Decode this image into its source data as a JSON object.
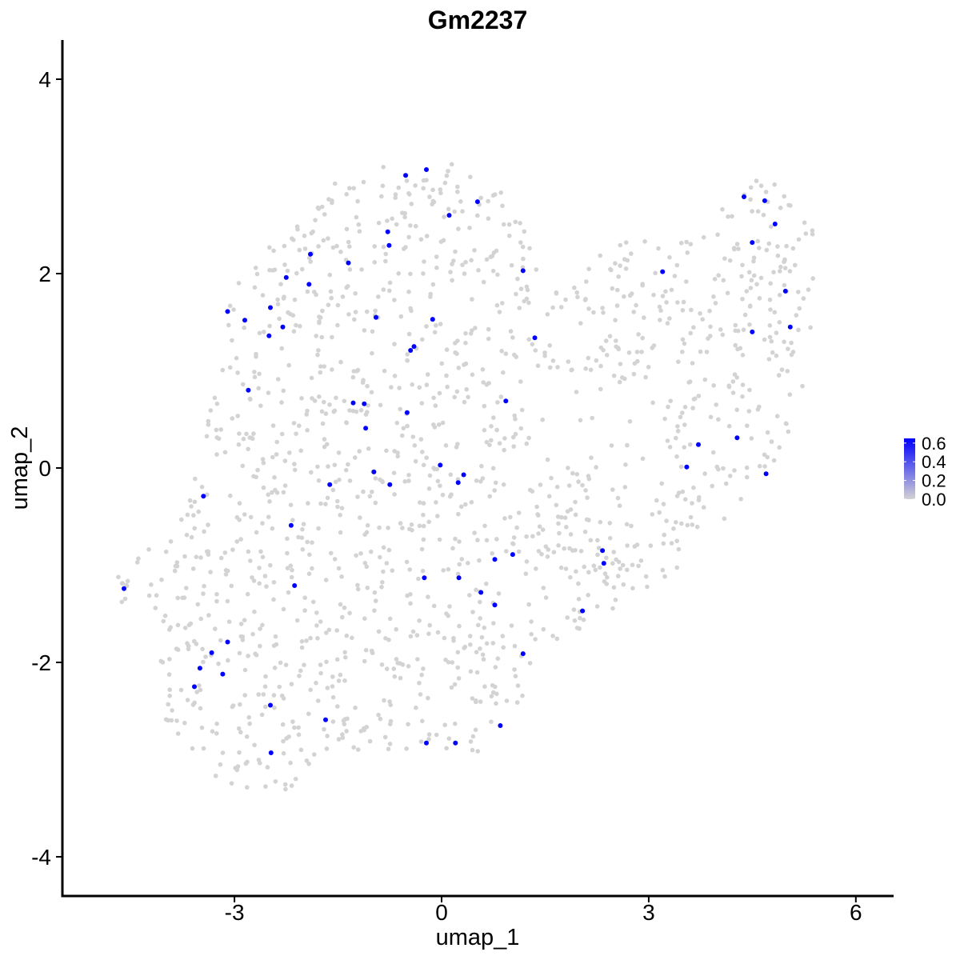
{
  "chart_data": {
    "type": "scatter",
    "title": "Gm2237",
    "xlabel": "umap_1",
    "ylabel": "umap_2",
    "xlim": [
      -5.5,
      6.5
    ],
    "ylim": [
      -4.3,
      4.4
    ],
    "x_ticks": [
      -3,
      0,
      3,
      6
    ],
    "x_tick_labels": [
      "-3",
      "0",
      "3",
      "6"
    ],
    "y_ticks": [
      -4,
      -2,
      0,
      2,
      4
    ],
    "y_tick_labels": [
      "-4",
      "-2",
      "0",
      "2",
      "4"
    ],
    "grid": false,
    "legend": {
      "placement": "right",
      "type": "colorbar",
      "ticks": [
        0.0,
        0.2,
        0.4,
        0.6
      ],
      "tick_labels": [
        "0.0",
        "0.2",
        "0.4",
        "0.6"
      ],
      "range": [
        0,
        0.65
      ],
      "low_color": "#d3d3d3",
      "high_color": "#0000ff"
    },
    "colors": {
      "not_expressed": "#d3d3d3",
      "expressed": "#0000ff"
    },
    "expressed_points": [
      {
        "x": -4.6,
        "y": -1.24
      },
      {
        "x": -3.58,
        "y": -2.25
      },
      {
        "x": -3.5,
        "y": -2.06
      },
      {
        "x": -3.33,
        "y": -1.9
      },
      {
        "x": -3.45,
        "y": -0.29
      },
      {
        "x": -3.17,
        "y": -2.12
      },
      {
        "x": -3.1,
        "y": -1.79
      },
      {
        "x": -3.1,
        "y": 1.61
      },
      {
        "x": -2.85,
        "y": 1.52
      },
      {
        "x": -2.8,
        "y": 0.8
      },
      {
        "x": -2.5,
        "y": 1.36
      },
      {
        "x": -2.48,
        "y": 1.65
      },
      {
        "x": -2.3,
        "y": 1.45
      },
      {
        "x": -2.25,
        "y": 1.96
      },
      {
        "x": -2.48,
        "y": -2.44
      },
      {
        "x": -2.47,
        "y": -2.93
      },
      {
        "x": -2.18,
        "y": -0.59
      },
      {
        "x": -2.13,
        "y": -1.21
      },
      {
        "x": -1.92,
        "y": 1.89
      },
      {
        "x": -1.9,
        "y": 2.2
      },
      {
        "x": -1.68,
        "y": -2.59
      },
      {
        "x": -1.62,
        "y": -0.17
      },
      {
        "x": -1.35,
        "y": 2.11
      },
      {
        "x": -1.28,
        "y": 0.67
      },
      {
        "x": -1.12,
        "y": 0.66
      },
      {
        "x": -1.1,
        "y": 0.41
      },
      {
        "x": -0.98,
        "y": -0.04
      },
      {
        "x": -0.95,
        "y": 1.55
      },
      {
        "x": -0.78,
        "y": 2.43
      },
      {
        "x": -0.76,
        "y": 2.29
      },
      {
        "x": -0.75,
        "y": -0.17
      },
      {
        "x": -0.52,
        "y": 3.01
      },
      {
        "x": -0.5,
        "y": 0.57
      },
      {
        "x": -0.45,
        "y": 1.21
      },
      {
        "x": -0.4,
        "y": 1.25
      },
      {
        "x": -0.22,
        "y": 3.07
      },
      {
        "x": -0.25,
        "y": -1.13
      },
      {
        "x": -0.22,
        "y": -2.83
      },
      {
        "x": -0.13,
        "y": 1.53
      },
      {
        "x": -0.02,
        "y": 0.03
      },
      {
        "x": 0.11,
        "y": 2.6
      },
      {
        "x": 0.2,
        "y": -2.83
      },
      {
        "x": 0.24,
        "y": -0.15
      },
      {
        "x": 0.25,
        "y": -1.13
      },
      {
        "x": 0.32,
        "y": -0.07
      },
      {
        "x": 0.52,
        "y": 2.74
      },
      {
        "x": 0.57,
        "y": -1.28
      },
      {
        "x": 0.77,
        "y": -0.94
      },
      {
        "x": 0.77,
        "y": -1.41
      },
      {
        "x": 0.85,
        "y": -2.65
      },
      {
        "x": 0.93,
        "y": 0.69
      },
      {
        "x": 1.03,
        "y": -0.89
      },
      {
        "x": 1.18,
        "y": 2.03
      },
      {
        "x": 1.18,
        "y": -1.91
      },
      {
        "x": 1.35,
        "y": 1.34
      },
      {
        "x": 2.04,
        "y": -1.47
      },
      {
        "x": 2.33,
        "y": -0.85
      },
      {
        "x": 2.35,
        "y": -0.98
      },
      {
        "x": 3.2,
        "y": 2.02
      },
      {
        "x": 3.55,
        "y": 0.01
      },
      {
        "x": 3.72,
        "y": 0.24
      },
      {
        "x": 4.28,
        "y": 0.31
      },
      {
        "x": 4.38,
        "y": 2.79
      },
      {
        "x": 4.5,
        "y": 2.32
      },
      {
        "x": 4.5,
        "y": 1.4
      },
      {
        "x": 4.68,
        "y": 2.75
      },
      {
        "x": 4.7,
        "y": -0.06
      },
      {
        "x": 4.83,
        "y": 2.51
      },
      {
        "x": 4.98,
        "y": 1.82
      },
      {
        "x": 5.05,
        "y": 1.45
      }
    ],
    "background_cell_count": 1500,
    "background_region": [
      [
        -4.7,
        -1.1
      ],
      [
        -4.5,
        -1.2
      ],
      [
        -4.3,
        -1.1
      ],
      [
        -4.1,
        -1.9
      ],
      [
        -4.0,
        -2.6
      ],
      [
        -3.6,
        -2.9
      ],
      [
        -3.3,
        -3.2
      ],
      [
        -2.8,
        -3.4
      ],
      [
        -2.3,
        -3.5
      ],
      [
        -1.8,
        -3.1
      ],
      [
        -1.2,
        -2.9
      ],
      [
        -0.5,
        -2.9
      ],
      [
        0.1,
        -3.0
      ],
      [
        0.6,
        -2.9
      ],
      [
        1.0,
        -2.6
      ],
      [
        1.4,
        -2.0
      ],
      [
        1.9,
        -1.7
      ],
      [
        2.5,
        -1.5
      ],
      [
        3.2,
        -1.2
      ],
      [
        3.7,
        -0.8
      ],
      [
        4.2,
        -0.5
      ],
      [
        4.7,
        -0.1
      ],
      [
        5.0,
        0.3
      ],
      [
        5.3,
        1.0
      ],
      [
        5.4,
        1.8
      ],
      [
        5.4,
        2.5
      ],
      [
        5.0,
        2.8
      ],
      [
        4.6,
        3.1
      ],
      [
        4.2,
        2.8
      ],
      [
        3.9,
        2.5
      ],
      [
        3.4,
        2.6
      ],
      [
        2.9,
        2.4
      ],
      [
        2.4,
        2.3
      ],
      [
        2.0,
        2.0
      ],
      [
        1.7,
        1.8
      ],
      [
        1.4,
        2.2
      ],
      [
        1.2,
        2.6
      ],
      [
        0.8,
        2.9
      ],
      [
        0.3,
        3.1
      ],
      [
        -0.3,
        3.2
      ],
      [
        -0.9,
        3.1
      ],
      [
        -1.5,
        3.0
      ],
      [
        -2.0,
        2.7
      ],
      [
        -2.4,
        2.4
      ],
      [
        -2.8,
        2.1
      ],
      [
        -3.1,
        1.7
      ],
      [
        -3.2,
        1.0
      ],
      [
        -3.4,
        0.5
      ],
      [
        -3.5,
        0.0
      ],
      [
        -3.7,
        -0.3
      ],
      [
        -3.9,
        -0.7
      ],
      [
        -4.4,
        -0.9
      ],
      [
        -4.7,
        -1.1
      ]
    ],
    "background_holes": [
      [
        [
          1.3,
          0.9
        ],
        [
          1.9,
          0.95
        ],
        [
          2.6,
          0.9
        ],
        [
          3.1,
          0.75
        ],
        [
          3.3,
          0.35
        ],
        [
          3.0,
          -0.05
        ],
        [
          2.4,
          -0.2
        ],
        [
          1.7,
          -0.05
        ],
        [
          1.3,
          0.3
        ]
      ]
    ]
  }
}
